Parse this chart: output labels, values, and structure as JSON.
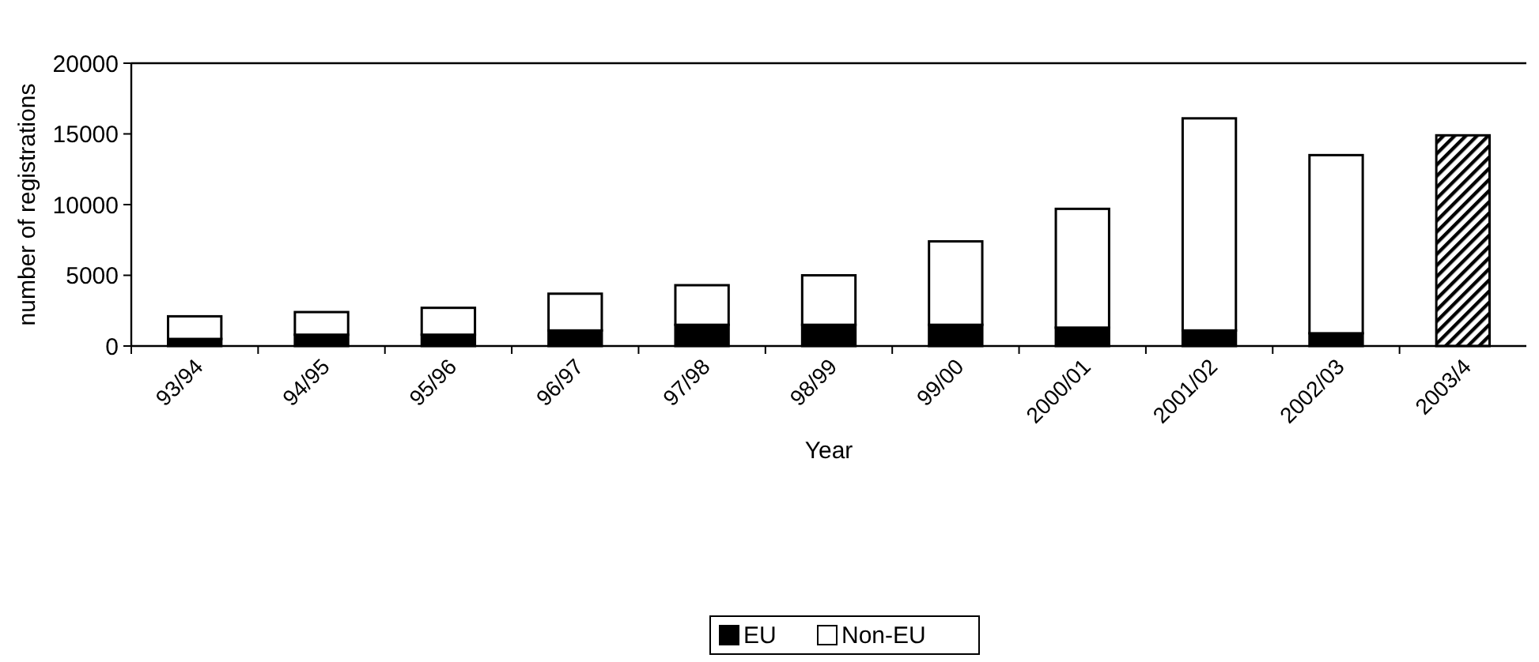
{
  "chart_data": {
    "type": "bar",
    "stacked": true,
    "xlabel": "Year",
    "ylabel": "number of registrations",
    "categories": [
      "93/94",
      "94/95",
      "95/96",
      "96/97",
      "97/98",
      "98/99",
      "99/00",
      "2000/01",
      "2001/02",
      "2002/03",
      "2003/4"
    ],
    "series": [
      {
        "name": "EU",
        "color": "#000000",
        "values": [
          500,
          800,
          800,
          1100,
          1500,
          1500,
          1500,
          1300,
          1100,
          900,
          null
        ]
      },
      {
        "name": "Non-EU",
        "color": "#ffffff",
        "values": [
          1600,
          1600,
          1900,
          2600,
          2800,
          3500,
          5900,
          8400,
          15000,
          12600,
          null
        ]
      },
      {
        "color": "#000000",
        "values": [
          null,
          null,
          null,
          null,
          null,
          null,
          null,
          null,
          null,
          null,
          14900
        ]
      }
    ],
    "ylim": [
      0,
      20000
    ],
    "yticks": [
      0,
      5000,
      10000,
      15000,
      20000
    ],
    "grid": false,
    "legend": "bottom"
  }
}
